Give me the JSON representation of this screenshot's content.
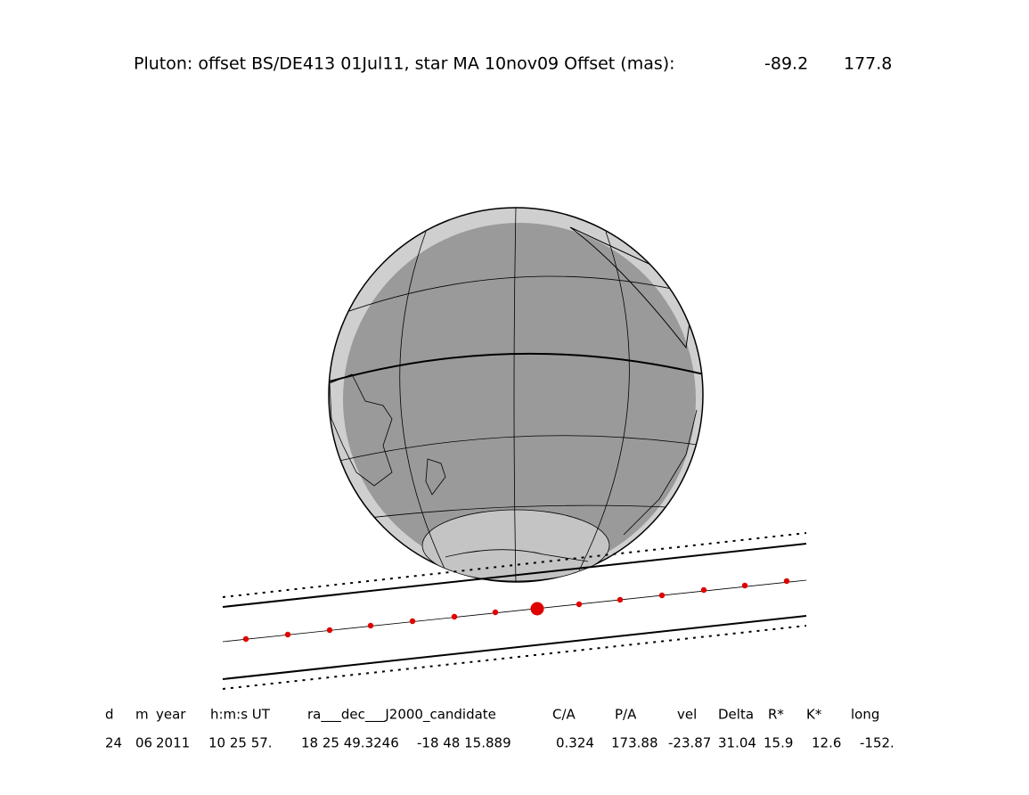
{
  "header": {
    "title": "Pluton: offset BS/DE413 01Jul11, star MA 10nov09  Offset (mas):",
    "offsets": [
      "-89.2",
      "177.8"
    ]
  },
  "table": {
    "columns": [
      "d",
      "m",
      "year",
      "h:m:s UT",
      "ra___dec___J2000_candidate",
      "C/A",
      "P/A",
      "vel",
      "Delta",
      "R*",
      "K*",
      "long"
    ],
    "rows": [
      [
        "24",
        "06",
        "2011",
        "10 25 57.",
        "18 25 49.3246",
        "-18 48  15.889",
        "0.324",
        "173.88",
        "-23.87",
        "31.04",
        "15.9",
        "12.6",
        "-152."
      ]
    ]
  }
}
